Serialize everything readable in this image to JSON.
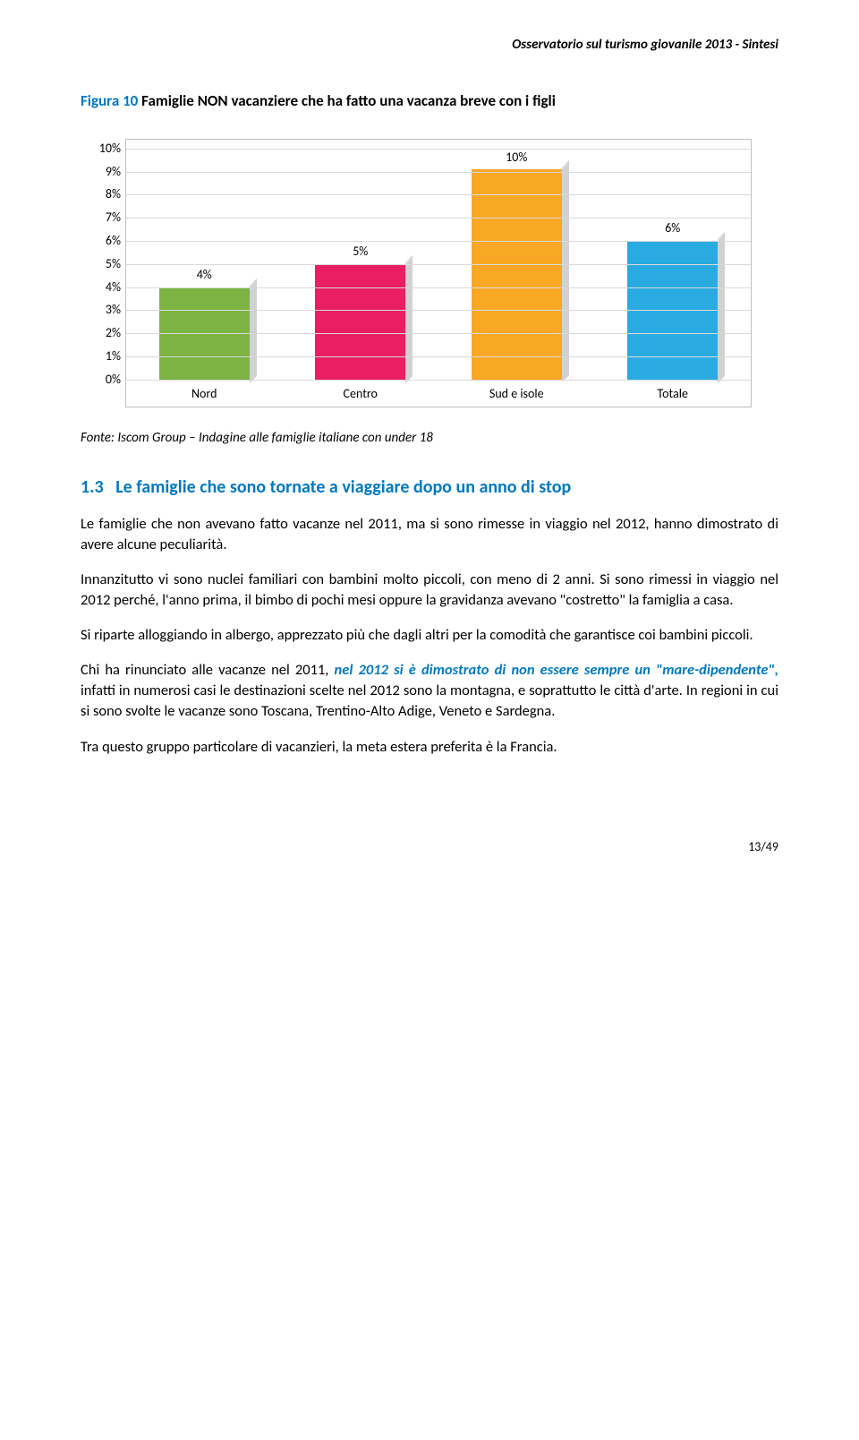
{
  "header": "Osservatorio sul turismo giovanile 2013 - Sintesi",
  "figure": {
    "title_prefix": "Figura 10",
    "title_rest": " Famiglie NON vacanziere che ha fatto una vacanza breve con i figli",
    "title_prefix_color": "#0079c1"
  },
  "chart": {
    "type": "bar",
    "categories": [
      "Nord",
      "Centro",
      "Sud e isole",
      "Totale"
    ],
    "values": [
      4,
      5,
      10,
      6
    ],
    "value_labels": [
      "4%",
      "5%",
      "10%",
      "6%"
    ],
    "bar_colors": [
      "#7cb342",
      "#e91e63",
      "#f9a825",
      "#29abe2"
    ],
    "ylim": [
      0,
      10
    ],
    "ytick_step": 1,
    "ytick_labels": [
      "0%",
      "1%",
      "2%",
      "3%",
      "4%",
      "5%",
      "6%",
      "7%",
      "8%",
      "9%",
      "10%"
    ],
    "background_color": "#ffffff",
    "grid_color": "#d9d9d9",
    "label_fontsize": 14
  },
  "caption_prefix": "Fonte:",
  "caption_rest": " Iscom Group – Indagine alle famiglie italiane con under 18",
  "section": {
    "num": "1.3",
    "title": "Le famiglie che sono tornate a viaggiare dopo un anno di stop"
  },
  "paragraphs": {
    "p1": "Le famiglie che non avevano fatto vacanze nel 2011, ma si sono rimesse in viaggio nel 2012, hanno dimostrato di avere alcune peculiarità.",
    "p2": "Innanzitutto vi sono nuclei familiari con bambini molto piccoli, con meno di 2 anni. Si sono rimessi in viaggio nel 2012 perché, l'anno prima, il bimbo di pochi mesi oppure la gravidanza avevano \"costretto\" la famiglia a casa.",
    "p3": "Si riparte alloggiando in albergo, apprezzato più che dagli altri per la comodità che garantisce coi bambini piccoli.",
    "p4_a": "Chi ha rinunciato alle vacanze nel 2011, ",
    "p4_emph": "nel 2012 si è dimostrato di non essere sempre un \"mare-dipendente\",",
    "p4_b": " infatti in numerosi casi le destinazioni scelte nel 2012 sono la montagna, e soprattutto le città d'arte. In regioni in cui si sono svolte le vacanze sono Toscana, Trentino-Alto Adige, Veneto e Sardegna.",
    "p5": "Tra questo gruppo particolare di vacanzieri, la meta estera preferita è la Francia."
  },
  "pagenum": "13/49"
}
